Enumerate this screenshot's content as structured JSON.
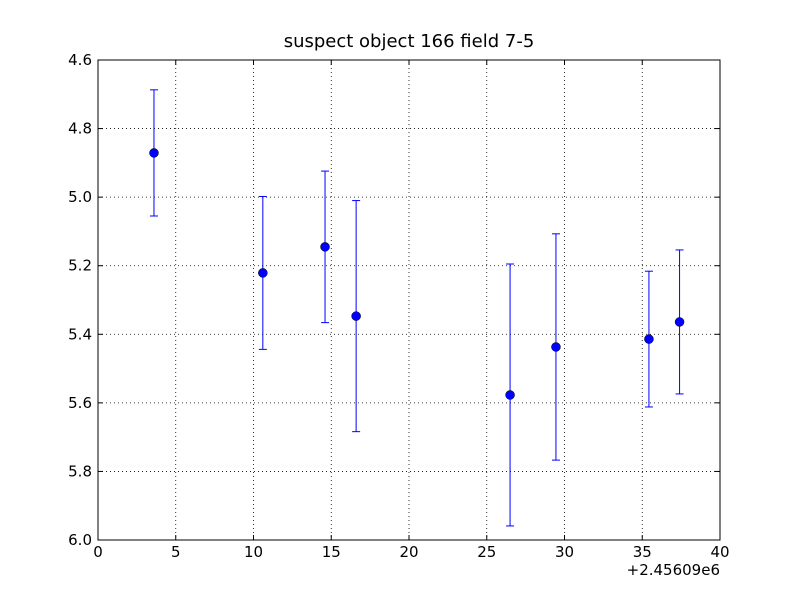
{
  "chart_data": {
    "type": "errorbar",
    "title": "suspect object 166 field 7-5",
    "x_offset_label": "+2.45609e6",
    "x": [
      3.6,
      10.6,
      14.6,
      16.6,
      26.5,
      29.45,
      35.43,
      37.4
    ],
    "series": [
      {
        "color": "#0000ff",
        "values": [
          4.871,
          5.221,
          5.145,
          5.347,
          5.577,
          5.437,
          5.414,
          5.364
        ],
        "errors": [
          0.184,
          0.223,
          0.221,
          0.337,
          0.382,
          0.33,
          0.198,
          0.21
        ]
      }
    ],
    "xlim": [
      0,
      40
    ],
    "xticks": [
      0,
      5,
      10,
      15,
      20,
      25,
      30,
      35,
      40
    ],
    "ylim": [
      4.6,
      6.0
    ],
    "y_inverted": true,
    "yticks": [
      4.6,
      4.8,
      {
        "value": 5,
        "label": "5.0"
      },
      5.2,
      5.4,
      5.6,
      5.8,
      {
        "value": 6,
        "label": "6.0"
      }
    ],
    "grid": true
  }
}
